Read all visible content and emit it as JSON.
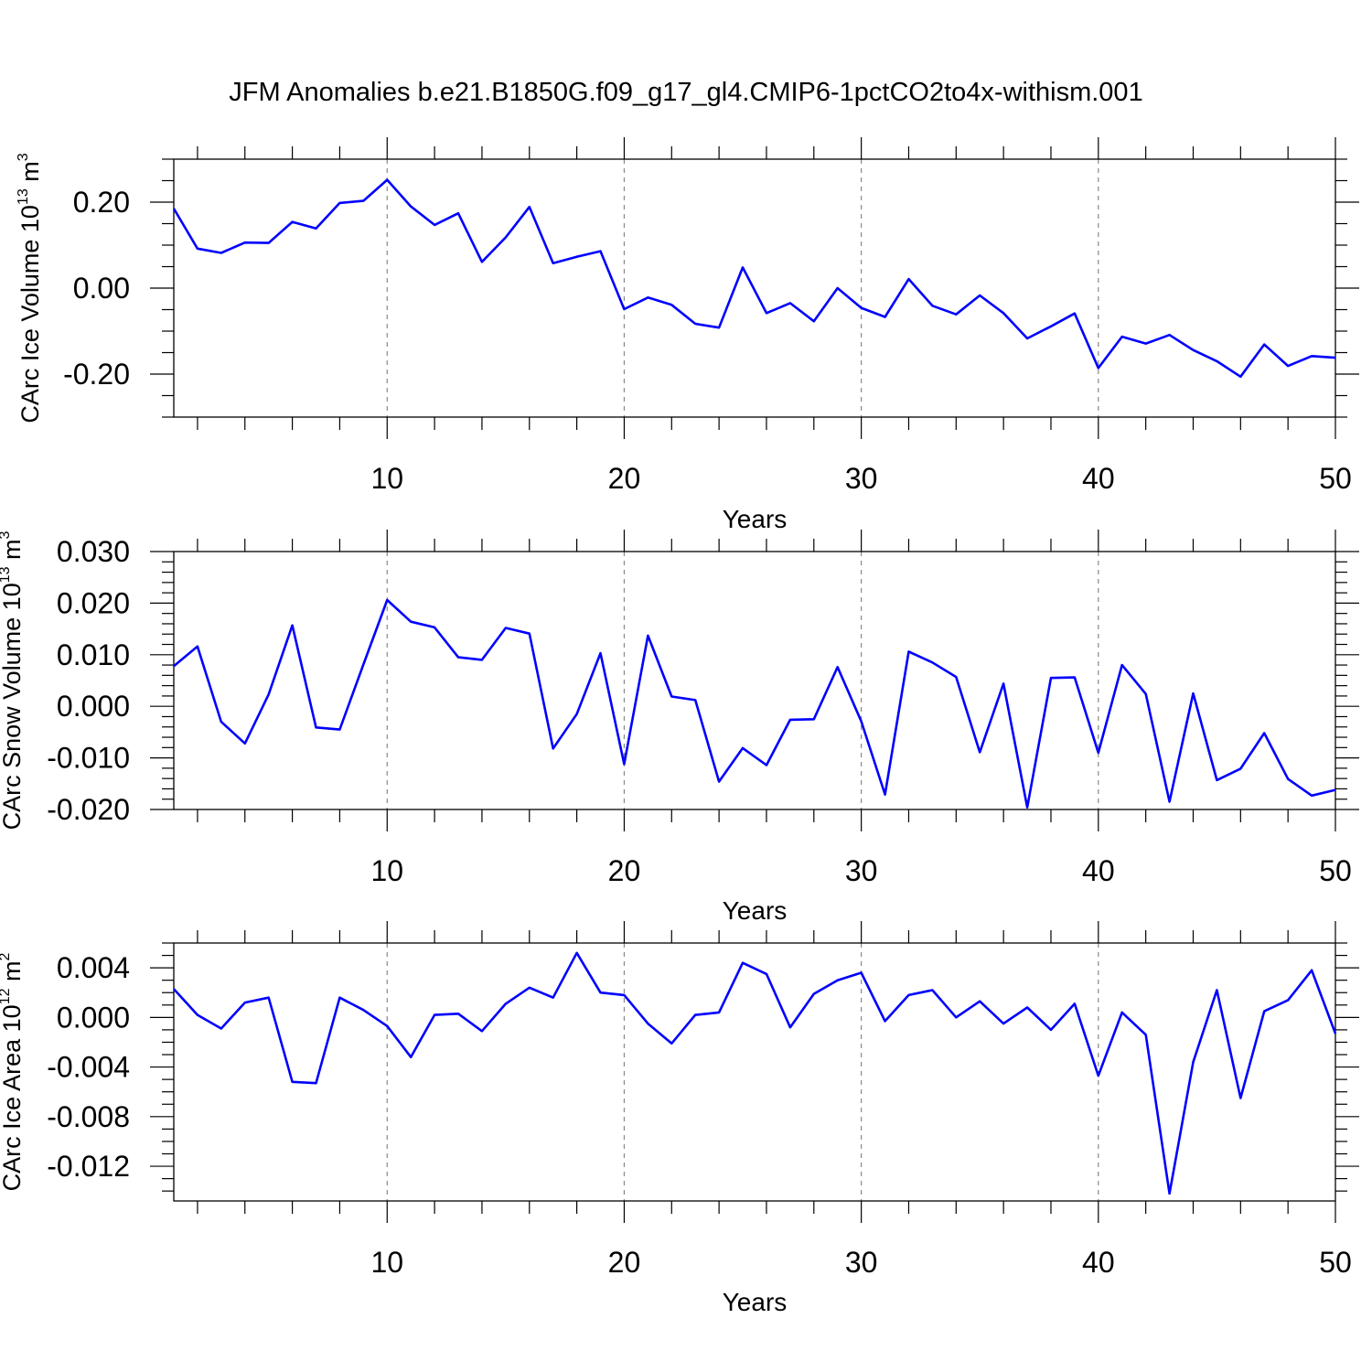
{
  "title": "JFM Anomalies b.e21.B1850G.f09_g17_gl4.CMIP6-1pctCO2to4x-withism.001",
  "line_color": "#0000ff",
  "chart_data": [
    {
      "type": "line",
      "ylabel": "CArc Ice Volume 10",
      "ylabel_exp": "13",
      "ylabel_unit": " m",
      "ylabel_unit_exp": "3",
      "xlabel": "Years",
      "xlim": [
        1,
        50
      ],
      "ylim": [
        -0.3,
        0.3
      ],
      "xticks": [
        10,
        20,
        30,
        40,
        50
      ],
      "xtick_labels": [
        "10",
        "20",
        "30",
        "40",
        "50"
      ],
      "yticks": [
        -0.2,
        0.0,
        0.2
      ],
      "ytick_labels": [
        "-0.20",
        "0.00",
        "0.20"
      ],
      "yminor_step": 0.05,
      "grid_x": [
        10,
        20,
        30,
        40
      ],
      "x": [
        1,
        2,
        3,
        4,
        5,
        6,
        7,
        8,
        9,
        10,
        11,
        12,
        13,
        14,
        15,
        16,
        17,
        18,
        19,
        20,
        21,
        22,
        23,
        24,
        25,
        26,
        27,
        28,
        29,
        30,
        31,
        32,
        33,
        34,
        35,
        36,
        37,
        38,
        39,
        40,
        41,
        42,
        43,
        44,
        45,
        46,
        47,
        48,
        49,
        50
      ],
      "values": [
        0.185,
        0.092,
        0.082,
        0.106,
        0.105,
        0.154,
        0.139,
        0.198,
        0.203,
        0.252,
        0.19,
        0.147,
        0.174,
        0.061,
        0.118,
        0.189,
        0.058,
        0.073,
        0.086,
        -0.049,
        -0.022,
        -0.039,
        -0.083,
        -0.092,
        0.048,
        -0.058,
        -0.035,
        -0.077,
        0.0,
        -0.046,
        -0.067,
        0.021,
        -0.041,
        -0.061,
        -0.017,
        -0.058,
        -0.117,
        -0.089,
        -0.059,
        -0.186,
        -0.113,
        -0.129,
        -0.109,
        -0.144,
        -0.17,
        -0.206,
        -0.131,
        -0.181,
        -0.158,
        -0.162
      ]
    },
    {
      "type": "line",
      "ylabel": "CArc Snow Volume 10",
      "ylabel_exp": "13",
      "ylabel_unit": " m",
      "ylabel_unit_exp": "3",
      "xlabel": "Years",
      "xlim": [
        1,
        50
      ],
      "ylim": [
        -0.02,
        0.03
      ],
      "xticks": [
        10,
        20,
        30,
        40,
        50
      ],
      "xtick_labels": [
        "10",
        "20",
        "30",
        "40",
        "50"
      ],
      "yticks": [
        -0.02,
        -0.01,
        0.0,
        0.01,
        0.02,
        0.03
      ],
      "ytick_labels": [
        "-0.020",
        "-0.010",
        "0.000",
        "0.010",
        "0.020",
        "0.030"
      ],
      "yminor_step": 0.002,
      "grid_x": [
        10,
        20,
        30,
        40
      ],
      "x": [
        1,
        2,
        3,
        4,
        5,
        6,
        7,
        8,
        9,
        10,
        11,
        12,
        13,
        14,
        15,
        16,
        17,
        18,
        19,
        20,
        21,
        22,
        23,
        24,
        25,
        26,
        27,
        28,
        29,
        30,
        31,
        32,
        33,
        34,
        35,
        36,
        37,
        38,
        39,
        40,
        41,
        42,
        43,
        44,
        45,
        46,
        47,
        48,
        49,
        50
      ],
      "values": [
        0.0078,
        0.0116,
        -0.003,
        -0.0072,
        0.0023,
        0.0157,
        -0.0041,
        -0.0045,
        0.0081,
        0.0206,
        0.0164,
        0.0153,
        0.0095,
        0.009,
        0.0152,
        0.0141,
        -0.0082,
        -0.0015,
        0.0103,
        -0.0112,
        0.0137,
        0.0019,
        0.0012,
        -0.0146,
        -0.0081,
        -0.0114,
        -0.0026,
        -0.0025,
        0.0076,
        -0.0029,
        -0.0171,
        0.0106,
        0.0085,
        0.0057,
        -0.0089,
        0.0044,
        -0.0196,
        0.0055,
        0.0056,
        -0.009,
        0.008,
        0.0024,
        -0.0185,
        0.0025,
        -0.0143,
        -0.0121,
        -0.0052,
        -0.0141,
        -0.0173,
        -0.0162
      ]
    },
    {
      "type": "line",
      "ylabel": "CArc Ice Area 10",
      "ylabel_exp": "12",
      "ylabel_unit": " m",
      "ylabel_unit_exp": "2",
      "xlabel": "Years",
      "xlim": [
        1,
        50
      ],
      "ylim": [
        -0.0148,
        0.006
      ],
      "xticks": [
        10,
        20,
        30,
        40,
        50
      ],
      "xtick_labels": [
        "10",
        "20",
        "30",
        "40",
        "50"
      ],
      "yticks": [
        -0.012,
        -0.008,
        -0.004,
        0.0,
        0.004
      ],
      "ytick_labels": [
        "-0.012",
        "-0.008",
        "-0.004",
        "0.000",
        "0.004"
      ],
      "yminor_step": 0.001,
      "grid_x": [
        10,
        20,
        30,
        40
      ],
      "x": [
        1,
        2,
        3,
        4,
        5,
        6,
        7,
        8,
        9,
        10,
        11,
        12,
        13,
        14,
        15,
        16,
        17,
        18,
        19,
        20,
        21,
        22,
        23,
        24,
        25,
        26,
        27,
        28,
        29,
        30,
        31,
        32,
        33,
        34,
        35,
        36,
        37,
        38,
        39,
        40,
        41,
        42,
        43,
        44,
        45,
        46,
        47,
        48,
        49,
        50
      ],
      "values": [
        0.0023,
        0.0002,
        -0.0009,
        0.0012,
        0.0016,
        -0.0052,
        -0.0053,
        0.0016,
        0.0006,
        -0.0007,
        -0.0032,
        0.0002,
        0.0003,
        -0.0011,
        0.0011,
        0.0024,
        0.0016,
        0.0052,
        0.002,
        0.0018,
        -0.0005,
        -0.0021,
        0.0002,
        0.0004,
        0.0044,
        0.0035,
        -0.0008,
        0.0019,
        0.003,
        0.0036,
        -0.0003,
        0.0018,
        0.0022,
        0.0,
        0.0013,
        -0.0005,
        0.0008,
        -0.001,
        0.0011,
        -0.0047,
        0.0004,
        -0.0014,
        -0.0142,
        -0.0036,
        0.0022,
        -0.0065,
        0.0005,
        0.0014,
        0.0038,
        -0.0013
      ]
    }
  ]
}
